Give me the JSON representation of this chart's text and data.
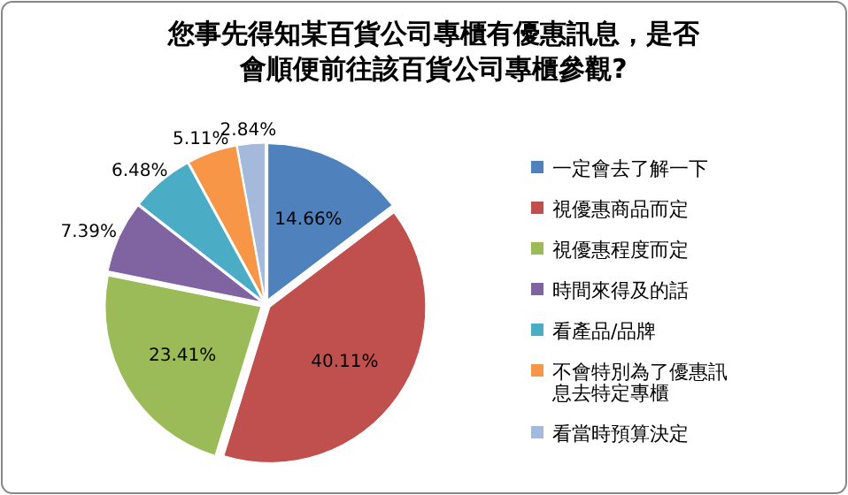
{
  "chart_data": {
    "type": "pie",
    "title": "您事先得知某百貨公司專櫃有優惠訊息，是否會順便前往該百貨公司專櫃參觀?",
    "categories": [
      "一定會去了解一下",
      "視優惠商品而定",
      "視優惠程度而定",
      "時間來得及的話",
      "看產品/品牌",
      "不會特別為了優惠訊息去特定專櫃",
      "看當時預算決定"
    ],
    "values": [
      14.66,
      40.11,
      23.41,
      7.39,
      6.48,
      5.11,
      2.84
    ],
    "value_labels": [
      "14.66%",
      "40.11%",
      "23.41%",
      "7.39%",
      "6.48%",
      "5.11%",
      "2.84%"
    ],
    "colors": [
      "#4f81bd",
      "#c0504d",
      "#9bbb59",
      "#8064a2",
      "#4bacc6",
      "#f79646",
      "#a5b9dd"
    ],
    "legend": "right"
  }
}
